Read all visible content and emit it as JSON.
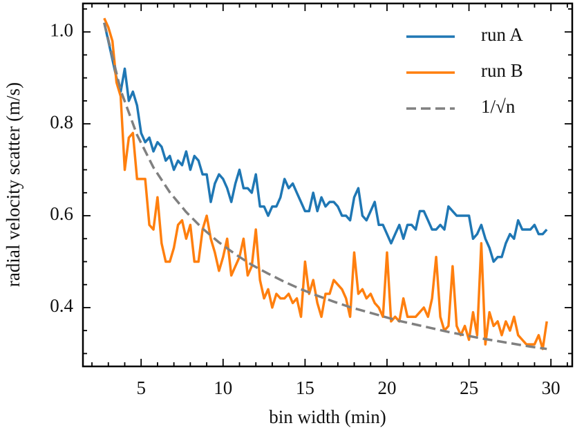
{
  "chart_data": {
    "type": "line",
    "xlabel": "bin width (min)",
    "ylabel": "radial velocity scatter (m/s)",
    "xlim": [
      1.45,
      31.3
    ],
    "ylim": [
      0.272,
      1.062
    ],
    "xticks": [
      5,
      10,
      15,
      20,
      25,
      30
    ],
    "yticks": [
      {
        "value": 0.4,
        "label": "0.4"
      },
      {
        "value": 0.6,
        "label": "0.6"
      },
      {
        "value": 0.8,
        "label": "0.8"
      },
      {
        "value": 1.0,
        "label": "1.0"
      }
    ],
    "xticks_minor": [
      2,
      3,
      4,
      6,
      7,
      8,
      9,
      11,
      12,
      13,
      14,
      16,
      17,
      18,
      19,
      21,
      22,
      23,
      24,
      26,
      27,
      28,
      29,
      31
    ],
    "yticks_minor": [
      0.3,
      0.35,
      0.45,
      0.5,
      0.55,
      0.65,
      0.7,
      0.75,
      0.85,
      0.9,
      0.95,
      1.05
    ],
    "legend": "upper right",
    "x": [
      2.75,
      3,
      3.25,
      3.5,
      3.75,
      4,
      4.25,
      4.5,
      4.75,
      5,
      5.25,
      5.5,
      5.75,
      6,
      6.25,
      6.5,
      6.75,
      7,
      7.25,
      7.5,
      7.75,
      8,
      8.25,
      8.5,
      8.75,
      9,
      9.25,
      9.5,
      9.75,
      10,
      10.25,
      10.5,
      10.75,
      11,
      11.25,
      11.5,
      11.75,
      12,
      12.25,
      12.5,
      12.75,
      13,
      13.25,
      13.5,
      13.75,
      14,
      14.25,
      14.5,
      14.75,
      15,
      15.25,
      15.5,
      15.75,
      16,
      16.25,
      16.5,
      16.75,
      17,
      17.25,
      17.5,
      17.75,
      18,
      18.25,
      18.5,
      18.75,
      19,
      19.25,
      19.5,
      19.75,
      20,
      20.25,
      20.5,
      20.75,
      21,
      21.25,
      21.5,
      21.75,
      22,
      22.25,
      22.5,
      22.75,
      23,
      23.25,
      23.5,
      23.75,
      24,
      24.25,
      24.5,
      24.75,
      25,
      25.25,
      25.5,
      25.75,
      26,
      26.25,
      26.5,
      26.75,
      27,
      27.25,
      27.5,
      27.75,
      28,
      28.25,
      28.5,
      28.75,
      29,
      29.25,
      29.5,
      29.75
    ],
    "series": [
      {
        "name": "run A",
        "color": "#1f77b4",
        "style": "solid",
        "values": [
          1.02,
          0.98,
          0.94,
          0.9,
          0.87,
          0.92,
          0.85,
          0.87,
          0.84,
          0.78,
          0.76,
          0.77,
          0.74,
          0.76,
          0.75,
          0.72,
          0.73,
          0.7,
          0.72,
          0.71,
          0.74,
          0.7,
          0.73,
          0.72,
          0.69,
          0.69,
          0.63,
          0.67,
          0.69,
          0.68,
          0.66,
          0.63,
          0.67,
          0.7,
          0.66,
          0.66,
          0.65,
          0.69,
          0.62,
          0.62,
          0.6,
          0.62,
          0.62,
          0.64,
          0.68,
          0.66,
          0.67,
          0.65,
          0.63,
          0.61,
          0.61,
          0.65,
          0.61,
          0.64,
          0.62,
          0.63,
          0.63,
          0.62,
          0.6,
          0.6,
          0.59,
          0.64,
          0.66,
          0.6,
          0.59,
          0.61,
          0.63,
          0.58,
          0.58,
          0.56,
          0.54,
          0.56,
          0.58,
          0.55,
          0.58,
          0.58,
          0.57,
          0.61,
          0.61,
          0.59,
          0.57,
          0.57,
          0.58,
          0.57,
          0.62,
          0.61,
          0.6,
          0.6,
          0.6,
          0.6,
          0.55,
          0.56,
          0.58,
          0.55,
          0.53,
          0.5,
          0.51,
          0.51,
          0.54,
          0.56,
          0.55,
          0.59,
          0.57,
          0.57,
          0.57,
          0.58,
          0.56,
          0.56,
          0.57
        ]
      },
      {
        "name": "run B",
        "color": "#ff7f0e",
        "style": "solid",
        "values": [
          1.03,
          1.01,
          0.98,
          0.89,
          0.86,
          0.7,
          0.77,
          0.78,
          0.68,
          0.68,
          0.68,
          0.58,
          0.57,
          0.64,
          0.54,
          0.5,
          0.5,
          0.53,
          0.58,
          0.59,
          0.55,
          0.58,
          0.5,
          0.5,
          0.57,
          0.6,
          0.55,
          0.52,
          0.48,
          0.51,
          0.55,
          0.47,
          0.49,
          0.51,
          0.55,
          0.47,
          0.49,
          0.57,
          0.46,
          0.42,
          0.44,
          0.4,
          0.43,
          0.42,
          0.42,
          0.43,
          0.41,
          0.42,
          0.38,
          0.5,
          0.43,
          0.46,
          0.41,
          0.38,
          0.43,
          0.43,
          0.46,
          0.45,
          0.44,
          0.42,
          0.38,
          0.52,
          0.43,
          0.44,
          0.42,
          0.43,
          0.41,
          0.4,
          0.38,
          0.52,
          0.37,
          0.38,
          0.37,
          0.42,
          0.38,
          0.38,
          0.38,
          0.39,
          0.4,
          0.38,
          0.42,
          0.51,
          0.38,
          0.35,
          0.36,
          0.49,
          0.36,
          0.34,
          0.36,
          0.33,
          0.39,
          0.34,
          0.54,
          0.32,
          0.39,
          0.36,
          0.37,
          0.34,
          0.37,
          0.35,
          0.38,
          0.34,
          0.33,
          0.32,
          0.32,
          0.32,
          0.34,
          0.31,
          0.37
        ]
      },
      {
        "name": "1/√n",
        "color": "#808080",
        "style": "dashed",
        "x": [
          2.75,
          3.75,
          4.75,
          5.75,
          6.75,
          7.75,
          8.75,
          9.75,
          10.75,
          11.75,
          12.75,
          13.75,
          14.75,
          15.75,
          16.75,
          17.75,
          18.75,
          19.75,
          20.75,
          21.75,
          22.75,
          23.75,
          24.75,
          25.75,
          26.75,
          27.75,
          28.75,
          29.75
        ],
        "values": [
          1.02,
          0.873,
          0.776,
          0.705,
          0.651,
          0.608,
          0.572,
          0.542,
          0.516,
          0.493,
          0.474,
          0.456,
          0.44,
          0.426,
          0.413,
          0.401,
          0.391,
          0.381,
          0.371,
          0.363,
          0.355,
          0.347,
          0.34,
          0.333,
          0.327,
          0.321,
          0.315,
          0.31
        ]
      }
    ]
  }
}
